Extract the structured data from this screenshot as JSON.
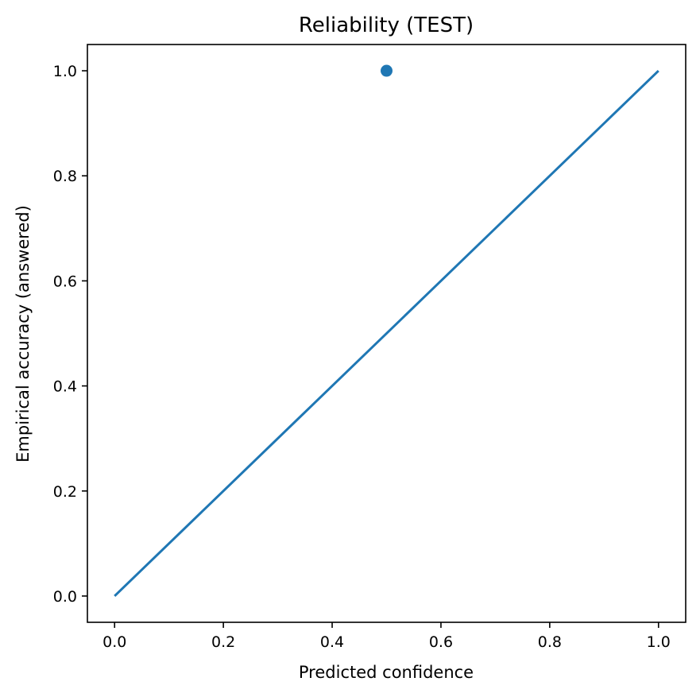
{
  "chart_data": {
    "type": "line",
    "title": "Reliability (TEST)",
    "xlabel": "Predicted confidence",
    "ylabel": "Empirical accuracy (answered)",
    "xlim": [
      -0.05,
      1.05
    ],
    "ylim": [
      -0.05,
      1.05
    ],
    "xticks": [
      "0.0",
      "0.2",
      "0.4",
      "0.6",
      "0.8",
      "1.0"
    ],
    "yticks": [
      "0.0",
      "0.2",
      "0.4",
      "0.6",
      "0.8",
      "1.0"
    ],
    "grid": false,
    "series": [
      {
        "type": "scatter",
        "x": [
          0.5
        ],
        "y": [
          1.0
        ],
        "color": "#1f77b4"
      },
      {
        "type": "line",
        "x": [
          0.0,
          1.0
        ],
        "y": [
          0.0,
          1.0
        ],
        "color": "#1f77b4"
      }
    ]
  }
}
